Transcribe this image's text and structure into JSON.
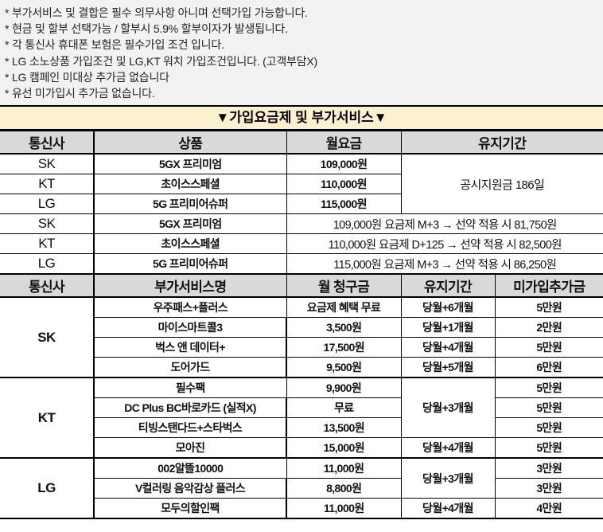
{
  "notes": [
    "* 부가서비스 및 결합은 필수 의무사항 아니며 선택가입 가능합니다.",
    "* 현금 및 할부 선택가능 / 할부시 5.9% 할부이자가 발생됩니다.",
    "* 각 통신사 휴대폰 보험은 필수가입 조건 입니다.",
    "* LG 소노상품 가입조건 및 LG,KT 워치 가입조건입니다. (고객부담X)",
    "* LG 캠페인 미대상 추가금 없습니다",
    "* 유선 미가입시 추가금 없습니다."
  ],
  "banner": "▼가입요금제 및 부가서비스▼",
  "plans": {
    "headers": [
      "통신사",
      "상품",
      "월요금",
      "유지기간"
    ],
    "rows": [
      {
        "carrier": "SK",
        "product": "5GX 프리미엄",
        "fee": "109,000원"
      },
      {
        "carrier": "KT",
        "product": "초이스스페셜",
        "fee": "110,000원"
      },
      {
        "carrier": "LG",
        "product": "5G 프리미어슈퍼",
        "fee": "115,000원"
      }
    ],
    "period": "공시지원금 186일",
    "contract_rows": [
      {
        "carrier": "SK",
        "product": "5GX 프리미엄",
        "detail": "109,000원 요금제 M+3 → 선약 적용 시 81,750원"
      },
      {
        "carrier": "KT",
        "product": "초이스스페셜",
        "detail": "110,000원 요금제 D+125 → 선약 적용 시 82,500원"
      },
      {
        "carrier": "LG",
        "product": "5G 프리미어슈퍼",
        "detail": "115,000원 요금제 M+3 → 선약 적용 시 86,250원"
      }
    ]
  },
  "addons": {
    "headers": [
      "통신사",
      "부가서비스명",
      "월 청구금",
      "유지기간",
      "미가입추가금"
    ],
    "sk": {
      "carrier": "SK",
      "rows": [
        {
          "name": "우주패스+플러스",
          "fee": "요금제 혜택 무료",
          "period": "당월+6개월",
          "penalty": "5만원"
        },
        {
          "name": "마이스마트콜3",
          "fee": "3,500원",
          "period": "당월+1개월",
          "penalty": "2만원"
        },
        {
          "name": "벅스 앤 데이터+",
          "fee": "17,500원",
          "period": "당월+4개월",
          "penalty": "5만원"
        },
        {
          "name": "도어가드",
          "fee": "9,500원",
          "period": "당월+5개월",
          "penalty": "6만원"
        }
      ]
    },
    "kt": {
      "carrier": "KT",
      "period_a": "당월+3개월",
      "period_b": "당월+4개월",
      "rows": [
        {
          "name": "필수팩",
          "fee": "9,900원",
          "penalty": "5만원"
        },
        {
          "name": "DC Plus BC바로카드 (실적X)",
          "fee": "무료",
          "penalty": "5만원"
        },
        {
          "name": "티빙스탠다드+스타벅스",
          "fee": "13,500원",
          "penalty": "5만원"
        },
        {
          "name": "모아진",
          "fee": "15,000원",
          "penalty": "5만원"
        }
      ]
    },
    "lg": {
      "carrier": "LG",
      "period_a": "당월+3개월",
      "period_b": "당월+4개월",
      "rows": [
        {
          "name": "002알뜰10000",
          "fee": "11,000원",
          "penalty": "3만원"
        },
        {
          "name": "V컬러링 음악감상 플러스",
          "fee": "8,800원",
          "penalty": "3만원"
        },
        {
          "name": "모두의할인팩",
          "fee": "11,000원",
          "penalty": "4만원"
        }
      ]
    }
  }
}
